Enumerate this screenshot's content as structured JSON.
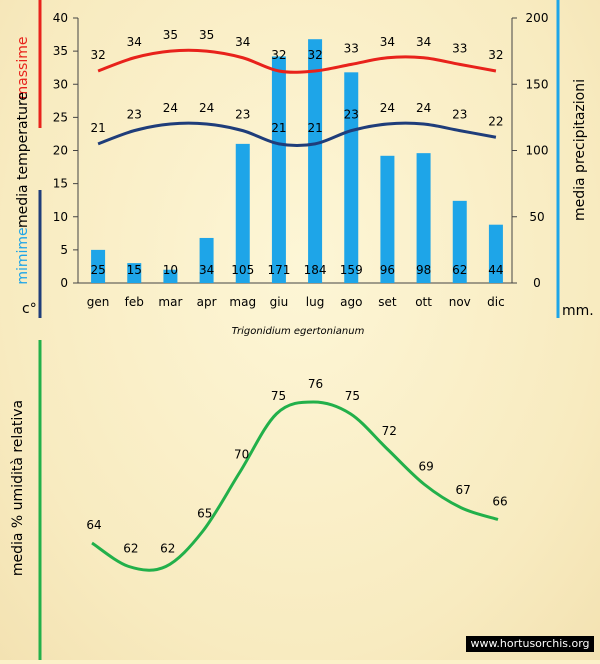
{
  "species": "Trigonidium egertonianum",
  "credit": "www.hortusorchis.org",
  "colors": {
    "max": "#e8221b",
    "min": "#1f3d7a",
    "bars": "#1ea5e8",
    "humidity": "#22b04a",
    "right_axis": "#2196d9"
  },
  "chart_data": [
    {
      "type": "bar",
      "categories": [
        "gen",
        "feb",
        "mar",
        "apr",
        "mag",
        "giu",
        "lug",
        "ago",
        "set",
        "ott",
        "nov",
        "dic"
      ],
      "series": [
        {
          "name": "media precipitazioni",
          "values": [
            25,
            15,
            10,
            34,
            105,
            171,
            184,
            159,
            96,
            98,
            62,
            44
          ],
          "axis": "right"
        },
        {
          "name": "massime",
          "values": [
            32,
            34,
            35,
            35,
            34,
            32,
            32,
            33,
            34,
            34,
            33,
            32
          ],
          "axis": "left",
          "type": "line"
        },
        {
          "name": "mimime",
          "values": [
            21,
            23,
            24,
            24,
            23,
            21,
            21,
            23,
            24,
            24,
            23,
            22
          ],
          "axis": "left",
          "type": "line"
        }
      ],
      "left_axis": {
        "title_parts": [
          "massime",
          "media temperature",
          "mimime"
        ],
        "unit": "c°",
        "ylim": [
          0,
          40
        ],
        "ticks": [
          0,
          5,
          10,
          15,
          20,
          25,
          30,
          35,
          40
        ]
      },
      "right_axis": {
        "title": "media precipitazioni",
        "unit": "mm.",
        "ylim": [
          0,
          200
        ],
        "ticks": [
          0,
          50,
          100,
          150,
          200
        ]
      }
    },
    {
      "type": "line",
      "categories": [
        "gen",
        "feb",
        "mar",
        "apr",
        "mag",
        "giu",
        "lug",
        "ago",
        "set",
        "ott",
        "nov",
        "dic"
      ],
      "series": [
        {
          "name": "media % umidità relativa",
          "values": [
            64,
            62,
            62,
            65,
            70,
            75,
            76,
            75,
            72,
            69,
            67,
            66
          ]
        }
      ],
      "ylabel": "media % umidità relativa"
    }
  ]
}
